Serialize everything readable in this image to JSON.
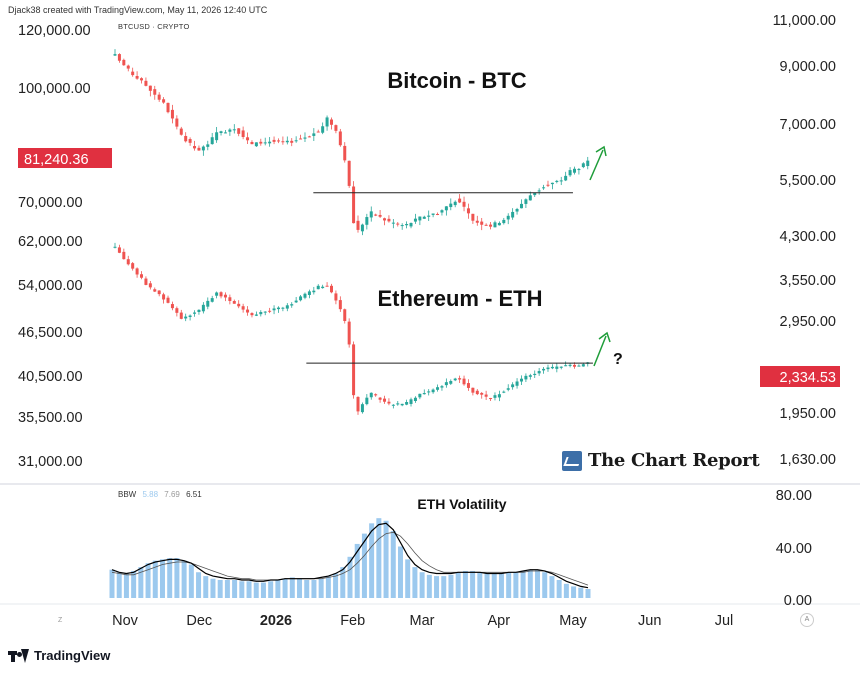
{
  "header": {
    "author_line": "Djack38 created with TradingView.com, May 11, 2026 12:40 UTC",
    "symbol": "BTCUSD · CRYPTO"
  },
  "watermark": "The Chart Report",
  "branding": "TradingView",
  "colors": {
    "up": "#26a69a",
    "down": "#ef5350",
    "price_label": "#e03040",
    "arrow": "#1f9d3a",
    "bbw_bars": "#9cc9ee",
    "bbw_line_main": "#000000",
    "bbw_line_slow": "#555555",
    "brand_blue": "#3d6fa8"
  },
  "chart_data": [
    {
      "type": "line",
      "title": "Bitcoin - BTC",
      "series": [
        {
          "values": [
            115000,
            109000,
            104000,
            98000,
            88000,
            84000,
            89000,
            91000,
            86000,
            87000,
            86500,
            88000,
            90000,
            94000,
            89000,
            78000,
            64000,
            69000,
            67000,
            66000,
            68000,
            69000,
            72000,
            67000,
            66000,
            68000,
            72000,
            75000,
            76500,
            79000,
            80000,
            81240
          ]
        }
      ],
      "x": [
        "2025-11-01",
        "2025-11-07",
        "2025-11-14",
        "2025-11-21",
        "2025-11-28",
        "2025-12-05",
        "2025-12-12",
        "2025-12-19",
        "2025-12-26",
        "2026-01-02",
        "2026-01-09",
        "2026-01-16",
        "2026-01-23",
        "2026-01-26",
        "2026-01-30",
        "2026-02-03",
        "2026-02-06",
        "2026-02-12",
        "2026-02-19",
        "2026-02-26",
        "2026-03-05",
        "2026-03-12",
        "2026-03-19",
        "2026-03-26",
        "2026-04-02",
        "2026-04-09",
        "2026-04-16",
        "2026-04-23",
        "2026-04-30",
        "2026-05-04",
        "2026-05-08",
        "2026-05-11"
      ],
      "y_ticks": [
        "120,000.00",
        "100,000.00",
        "70,000.00",
        "62,000.00"
      ],
      "last_price": "81,240.36",
      "resistance_level": 73500,
      "annotations": [
        "upward arrow"
      ]
    },
    {
      "type": "line",
      "title": "Ethereum - ETH",
      "series": [
        {
          "values": [
            3900,
            3600,
            3300,
            3100,
            2850,
            2950,
            3200,
            3050,
            2900,
            2950,
            3000,
            3150,
            3300,
            3280,
            3050,
            2700,
            1850,
            2050,
            1950,
            1950,
            2050,
            2100,
            2200,
            2050,
            2000,
            2100,
            2200,
            2280,
            2300,
            2310,
            2320,
            2334
          ]
        }
      ],
      "y_ticks": [
        "54,000.00",
        "46,500.00",
        "40,500.00",
        "35,500.00",
        "31,000.00"
      ],
      "last_price": "2,334.53",
      "resistance_level": 2340,
      "annotations": [
        "upward arrow",
        "?"
      ]
    },
    {
      "type": "bar",
      "title": "ETH Volatility",
      "indicator_label": "BBW",
      "indicator_values": [
        "5.88",
        "7.69",
        "6.51"
      ],
      "values": [
        22,
        20,
        19,
        21,
        24,
        27,
        29,
        30,
        31,
        31,
        29,
        26,
        20,
        17,
        15,
        14,
        14,
        14,
        13,
        13,
        12,
        12,
        13,
        14,
        15,
        16,
        15,
        14,
        14,
        15,
        17,
        19,
        24,
        32,
        42,
        50,
        58,
        62,
        60,
        52,
        40,
        30,
        24,
        20,
        18,
        17,
        17,
        18,
        20,
        21,
        21,
        20,
        19,
        19,
        19,
        20,
        20,
        21,
        22,
        22,
        20,
        17,
        14,
        11,
        9,
        8,
        7
      ],
      "line1": [
        22,
        20,
        19,
        20,
        23,
        26,
        28,
        29,
        30,
        30,
        29,
        27,
        23,
        19,
        17,
        16,
        15,
        15,
        14,
        14,
        13,
        13,
        14,
        14,
        15,
        15,
        15,
        15,
        15,
        16,
        17,
        19,
        22,
        28,
        36,
        44,
        52,
        57,
        58,
        53,
        43,
        33,
        26,
        22,
        20,
        19,
        19,
        19,
        20,
        20,
        20,
        20,
        19,
        19,
        19,
        20,
        20,
        21,
        22,
        22,
        21,
        19,
        16,
        13,
        11,
        9,
        8
      ],
      "line2": [
        20,
        19,
        18,
        18,
        20,
        22,
        24,
        26,
        27,
        28,
        28,
        27,
        25,
        23,
        21,
        19,
        17,
        16,
        15,
        15,
        14,
        14,
        14,
        14,
        15,
        15,
        15,
        15,
        15,
        15,
        16,
        17,
        19,
        22,
        27,
        33,
        40,
        46,
        50,
        51,
        48,
        42,
        35,
        29,
        25,
        22,
        20,
        20,
        20,
        20,
        20,
        20,
        20,
        20,
        20,
        20,
        20,
        20,
        21,
        21,
        21,
        20,
        18,
        16,
        14,
        12,
        10
      ],
      "y_ticks": [
        "80.00",
        "40.00",
        "0.00"
      ],
      "ylim": [
        0,
        80
      ]
    }
  ],
  "right_axis": [
    "11,000.00",
    "9,000.00",
    "7,000.00",
    "5,500.00",
    "4,300.00",
    "3,550.00",
    "2,950.00",
    "1,950.00",
    "1,630.00"
  ],
  "x_axis": [
    "Nov",
    "Dec",
    "2026",
    "Feb",
    "Mar",
    "Apr",
    "May",
    "Jun",
    "Jul"
  ],
  "controls": {
    "left": "Z",
    "right": "A"
  }
}
